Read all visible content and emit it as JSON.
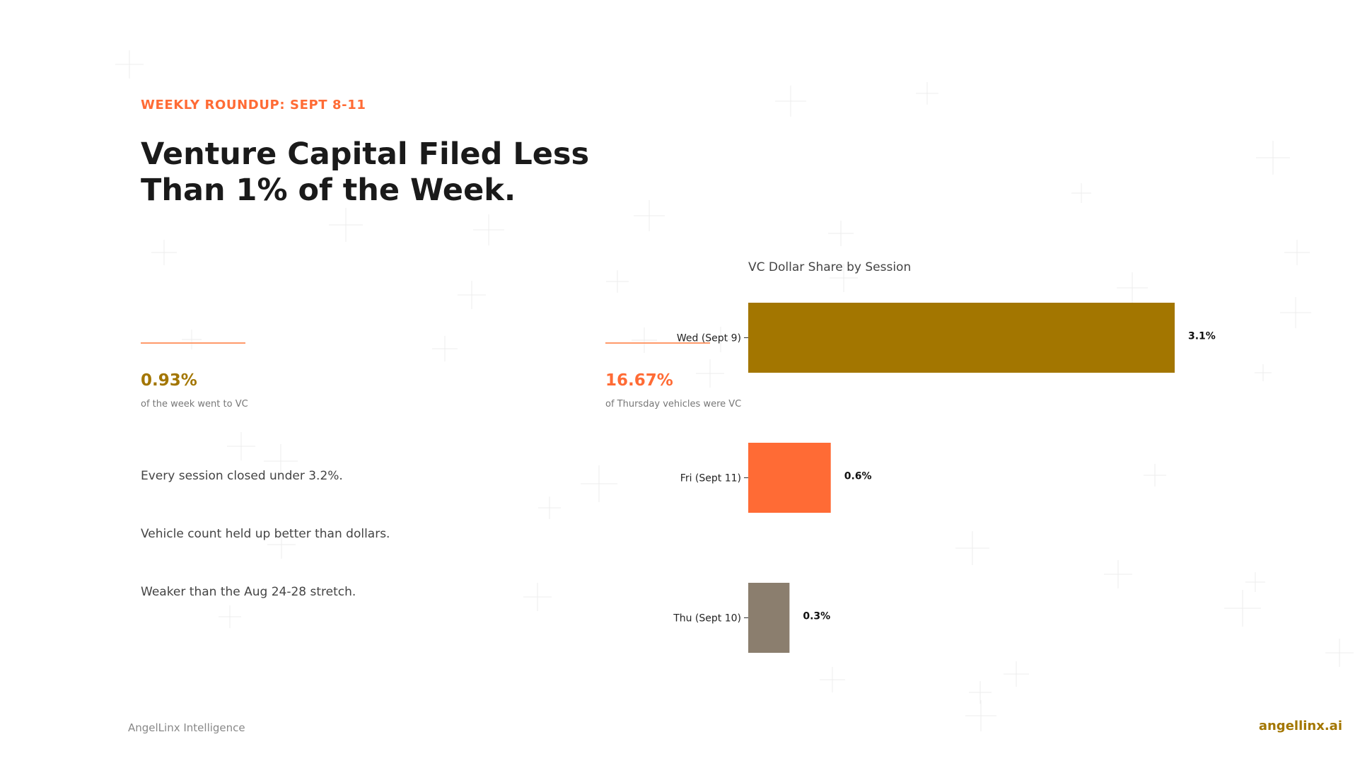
{
  "header": {
    "eyebrow": "WEEKLY ROUNDUP: SEPT 8-11",
    "headline_line1": "Venture Capital Filed Less",
    "headline_line2": "Than 1% of the Week."
  },
  "stats": [
    {
      "value": "0.93%",
      "caption": "of the week went to VC",
      "color": "#a37600"
    },
    {
      "value": "16.67%",
      "caption": "of Thursday vehicles were VC",
      "color": "#ff6b35"
    }
  ],
  "bullets": [
    "Every session closed under 3.2%.",
    "Vehicle count held up better than dollars.",
    "Weaker than the Aug 24-28 stretch."
  ],
  "chart_data": {
    "type": "bar",
    "orientation": "horizontal",
    "title": "VC Dollar Share by Session",
    "xlabel": "",
    "ylabel": "",
    "grid": false,
    "categories": [
      "Wed (Sept 9)",
      "Fri (Sept 11)",
      "Thu (Sept 10)"
    ],
    "values": [
      3.1,
      0.6,
      0.3
    ],
    "value_labels": [
      "3.1%",
      "0.6%",
      "0.3%"
    ],
    "colors": [
      "#a37600",
      "#ff6b35",
      "#8b7e6e"
    ],
    "xlim": [
      0,
      3.1
    ]
  },
  "footer": {
    "brand": "AngelLinx Intelligence",
    "url": "angellinx.ai"
  },
  "theme": {
    "accent_orange": "#ff6b35",
    "accent_gold": "#a37600"
  }
}
